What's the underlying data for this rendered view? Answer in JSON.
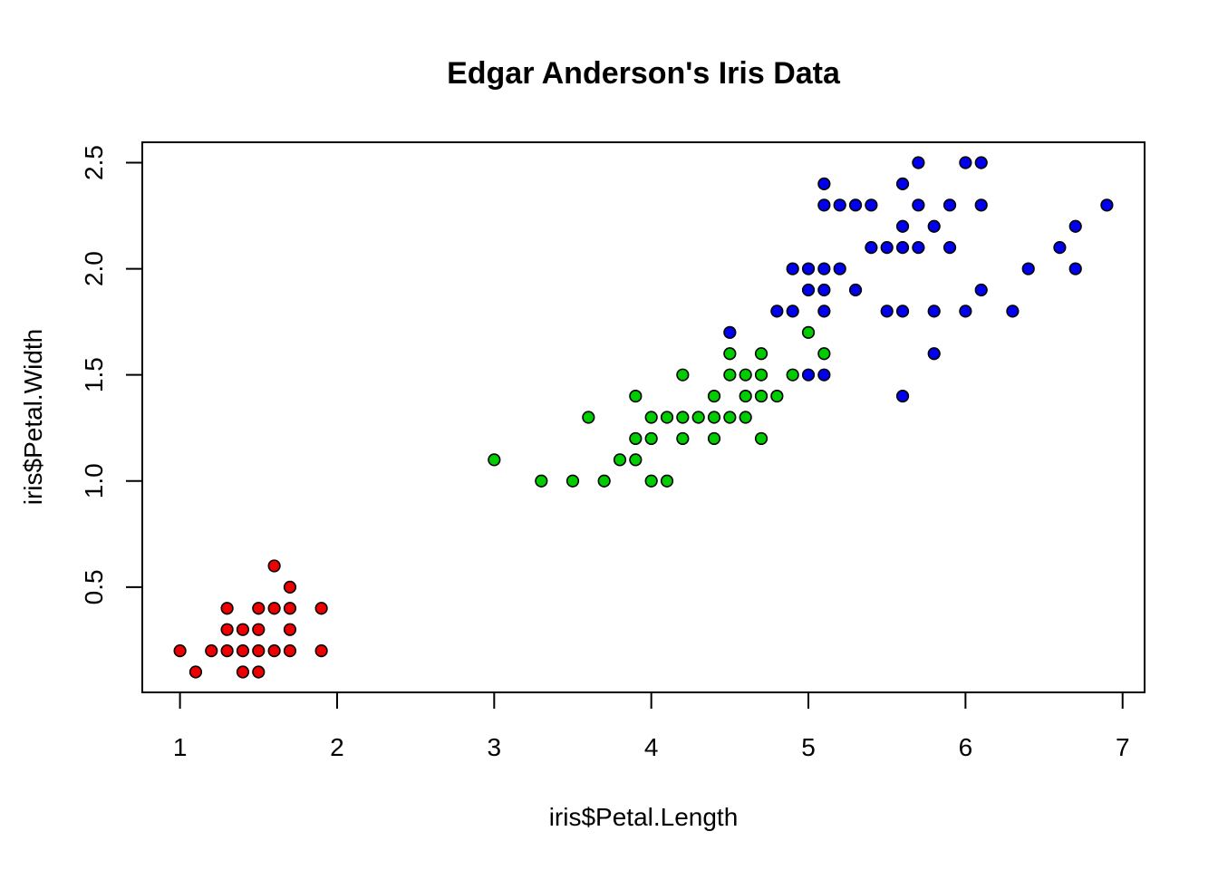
{
  "chart_data": {
    "type": "scatter",
    "title": "Edgar Anderson's Iris Data",
    "xlabel": "iris$Petal.Length",
    "ylabel": "iris$Petal.Width",
    "xlim": [
      0.76,
      7.14
    ],
    "ylim": [
      0.004,
      2.596
    ],
    "xticks": [
      1,
      2,
      3,
      4,
      5,
      6,
      7
    ],
    "yticks": [
      "0.5",
      "1.0",
      "1.5",
      "2.0",
      "2.5"
    ],
    "point_style": "filled circle with black outline",
    "grid": false,
    "series": [
      {
        "color": "#ee0000",
        "points": [
          [
            1.0,
            0.2
          ],
          [
            1.1,
            0.1
          ],
          [
            1.2,
            0.2
          ],
          [
            1.3,
            0.2
          ],
          [
            1.3,
            0.3
          ],
          [
            1.3,
            0.4
          ],
          [
            1.4,
            0.1
          ],
          [
            1.4,
            0.2
          ],
          [
            1.4,
            0.3
          ],
          [
            1.5,
            0.1
          ],
          [
            1.5,
            0.2
          ],
          [
            1.5,
            0.3
          ],
          [
            1.5,
            0.4
          ],
          [
            1.6,
            0.2
          ],
          [
            1.6,
            0.4
          ],
          [
            1.6,
            0.6
          ],
          [
            1.7,
            0.2
          ],
          [
            1.7,
            0.3
          ],
          [
            1.7,
            0.4
          ],
          [
            1.7,
            0.5
          ],
          [
            1.9,
            0.2
          ],
          [
            1.9,
            0.4
          ]
        ]
      },
      {
        "color": "#00cd00",
        "points": [
          [
            3.0,
            1.1
          ],
          [
            3.3,
            1.0
          ],
          [
            3.5,
            1.0
          ],
          [
            3.6,
            1.3
          ],
          [
            3.7,
            1.0
          ],
          [
            3.8,
            1.1
          ],
          [
            3.9,
            1.1
          ],
          [
            3.9,
            1.2
          ],
          [
            3.9,
            1.4
          ],
          [
            4.0,
            1.0
          ],
          [
            4.0,
            1.2
          ],
          [
            4.0,
            1.3
          ],
          [
            4.1,
            1.0
          ],
          [
            4.1,
            1.3
          ],
          [
            4.2,
            1.2
          ],
          [
            4.2,
            1.3
          ],
          [
            4.2,
            1.5
          ],
          [
            4.3,
            1.3
          ],
          [
            4.4,
            1.2
          ],
          [
            4.4,
            1.3
          ],
          [
            4.4,
            1.4
          ],
          [
            4.5,
            1.3
          ],
          [
            4.5,
            1.5
          ],
          [
            4.5,
            1.6
          ],
          [
            4.6,
            1.3
          ],
          [
            4.6,
            1.4
          ],
          [
            4.6,
            1.5
          ],
          [
            4.7,
            1.2
          ],
          [
            4.7,
            1.4
          ],
          [
            4.7,
            1.5
          ],
          [
            4.7,
            1.6
          ],
          [
            4.8,
            1.4
          ],
          [
            4.9,
            1.5
          ],
          [
            5.0,
            1.7
          ],
          [
            5.1,
            1.6
          ]
        ]
      },
      {
        "color": "#0000ee",
        "points": [
          [
            4.5,
            1.7
          ],
          [
            4.8,
            1.8
          ],
          [
            4.9,
            1.8
          ],
          [
            4.9,
            2.0
          ],
          [
            5.0,
            1.5
          ],
          [
            5.0,
            1.9
          ],
          [
            5.0,
            2.0
          ],
          [
            5.1,
            1.5
          ],
          [
            5.1,
            1.8
          ],
          [
            5.1,
            1.9
          ],
          [
            5.1,
            2.0
          ],
          [
            5.1,
            2.3
          ],
          [
            5.1,
            2.4
          ],
          [
            5.2,
            2.0
          ],
          [
            5.2,
            2.3
          ],
          [
            5.3,
            1.9
          ],
          [
            5.3,
            2.3
          ],
          [
            5.4,
            2.1
          ],
          [
            5.4,
            2.3
          ],
          [
            5.5,
            1.8
          ],
          [
            5.5,
            2.1
          ],
          [
            5.6,
            1.4
          ],
          [
            5.6,
            1.8
          ],
          [
            5.6,
            2.1
          ],
          [
            5.6,
            2.2
          ],
          [
            5.6,
            2.4
          ],
          [
            5.7,
            2.1
          ],
          [
            5.7,
            2.3
          ],
          [
            5.7,
            2.5
          ],
          [
            5.8,
            1.6
          ],
          [
            5.8,
            1.8
          ],
          [
            5.8,
            2.2
          ],
          [
            5.9,
            2.1
          ],
          [
            5.9,
            2.3
          ],
          [
            6.0,
            1.8
          ],
          [
            6.0,
            2.5
          ],
          [
            6.1,
            1.9
          ],
          [
            6.1,
            2.3
          ],
          [
            6.1,
            2.5
          ],
          [
            6.3,
            1.8
          ],
          [
            6.4,
            2.0
          ],
          [
            6.6,
            2.1
          ],
          [
            6.7,
            2.0
          ],
          [
            6.7,
            2.2
          ],
          [
            6.9,
            2.3
          ]
        ]
      }
    ]
  }
}
